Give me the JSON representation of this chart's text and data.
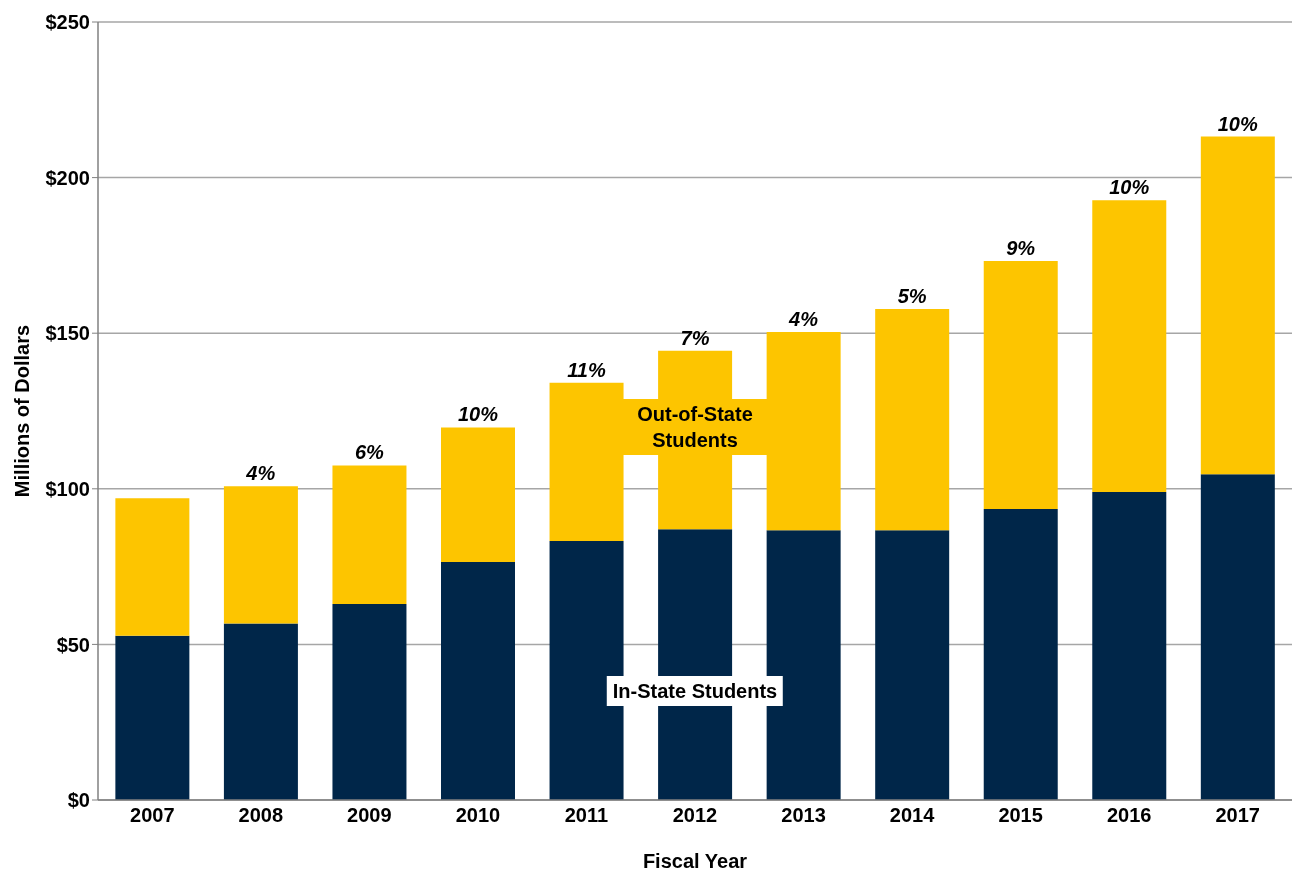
{
  "chart_data": {
    "type": "bar",
    "stacked": true,
    "xlabel": "Fiscal Year",
    "ylabel": "Millions of Dollars",
    "categories": [
      "2007",
      "2008",
      "2009",
      "2010",
      "2011",
      "2012",
      "2013",
      "2014",
      "2015",
      "2016",
      "2017"
    ],
    "series": [
      {
        "name": "In-State Students",
        "color": "#002649",
        "values": [
          52.8,
          56.7,
          63,
          76.5,
          83.2,
          87,
          86.7,
          86.7,
          93.5,
          99,
          104.7
        ]
      },
      {
        "name": "Out-of-State Students",
        "color": "#fdc500",
        "values": [
          44.2,
          44.1,
          44.5,
          43.2,
          50.9,
          57.4,
          63.7,
          71.1,
          79.7,
          93.7,
          108.5
        ]
      }
    ],
    "annotations": [
      {
        "text": "4%",
        "x": "2008",
        "y": 100.8
      },
      {
        "text": "6%",
        "x": "2009",
        "y": 107.5
      },
      {
        "text": "10%",
        "x": "2010",
        "y": 119.7
      },
      {
        "text": "11%",
        "x": "2011",
        "y": 134.1
      },
      {
        "text": "7%",
        "x": "2012",
        "y": 144.4
      },
      {
        "text": "4%",
        "x": "2013",
        "y": 150.4
      },
      {
        "text": "5%",
        "x": "2014",
        "y": 157.8
      },
      {
        "text": "9%",
        "x": "2015",
        "y": 173.2
      },
      {
        "text": "10%",
        "x": "2016",
        "y": 192.7
      },
      {
        "text": "10%",
        "x": "2017",
        "y": 213.2
      }
    ],
    "ylim": [
      0,
      250
    ],
    "yticks": [
      {
        "value": 0,
        "label": "$0"
      },
      {
        "value": 50,
        "label": "$50"
      },
      {
        "value": 100,
        "label": "$100"
      },
      {
        "value": 150,
        "label": "$150"
      },
      {
        "value": 200,
        "label": "$200"
      },
      {
        "value": 250,
        "label": "$250"
      }
    ],
    "grid": "y",
    "legend": false
  }
}
